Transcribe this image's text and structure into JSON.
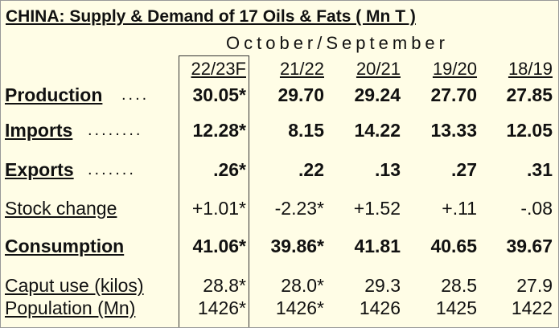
{
  "header": {
    "title": "CHINA: Supply & Demand of 17 Oils & Fats ( Mn T )",
    "subtitle": "October/September"
  },
  "table": {
    "columns": [
      "22/23F",
      "21/22",
      "20/21",
      "19/20",
      "18/19"
    ],
    "rows": [
      {
        "label": "Production",
        "cells": [
          "30.05*",
          "29.70",
          "29.24",
          "27.70",
          "27.85"
        ]
      },
      {
        "label": "Imports",
        "cells": [
          "12.28*",
          "8.15",
          "14.22",
          "13.33",
          "12.05"
        ]
      },
      {
        "label": "Exports",
        "cells": [
          ".26*",
          ".22",
          ".13",
          ".27",
          ".31"
        ]
      },
      {
        "label": "Stock change",
        "cells": [
          "+1.01*",
          "-2.23*",
          "+1.52",
          "+.11",
          "-.08"
        ]
      },
      {
        "label": "Consumption",
        "cells": [
          "41.06*",
          "39.86*",
          "41.81",
          "40.65",
          "39.67"
        ]
      },
      {
        "label": "Caput use (kilos)",
        "cells": [
          "28.8*",
          "28.0*",
          "29.3",
          "28.5",
          "27.9"
        ]
      },
      {
        "label": "Population (Mn)",
        "cells": [
          "1426*",
          "1426*",
          "1426",
          "1425",
          "1422"
        ]
      }
    ]
  }
}
